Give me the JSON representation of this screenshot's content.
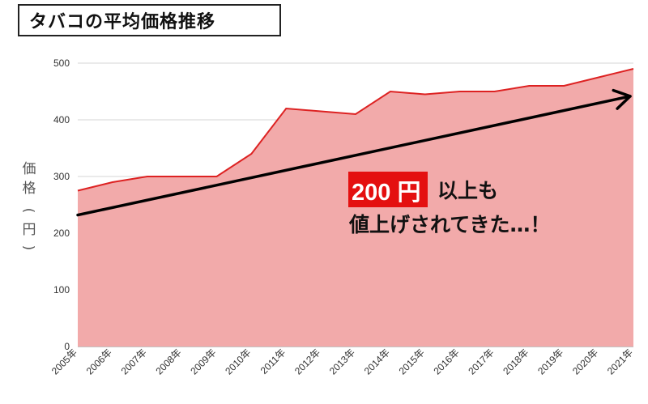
{
  "title": "タバコの平均価格推移",
  "annotation": {
    "highlight": "200 円",
    "line1_rest": "以上も",
    "line2": "値上げされてきた…！"
  },
  "colors": {
    "area_fill": "#f2aaaa",
    "line": "#dd2222",
    "trend_arrow": "#000000",
    "highlight_bg": "#e41010"
  },
  "chart_data": {
    "type": "area",
    "title": "タバコの平均価格推移",
    "ylabel": "価格（円）",
    "xlabel": "",
    "ylim": [
      0,
      500
    ],
    "yticks": [
      0,
      100,
      200,
      300,
      400,
      500
    ],
    "grid": true,
    "categories": [
      "2005年",
      "2006年",
      "2007年",
      "2008年",
      "2009年",
      "2010年",
      "2011年",
      "2012年",
      "2013年",
      "2014年",
      "2015年",
      "2016年",
      "2017年",
      "2018年",
      "2019年",
      "2020年",
      "2021年"
    ],
    "values": [
      275,
      290,
      300,
      300,
      300,
      340,
      420,
      415,
      410,
      450,
      445,
      450,
      450,
      460,
      460,
      475,
      490
    ],
    "trend_arrow": {
      "from": [
        0,
        232
      ],
      "to": [
        16,
        443
      ]
    }
  }
}
